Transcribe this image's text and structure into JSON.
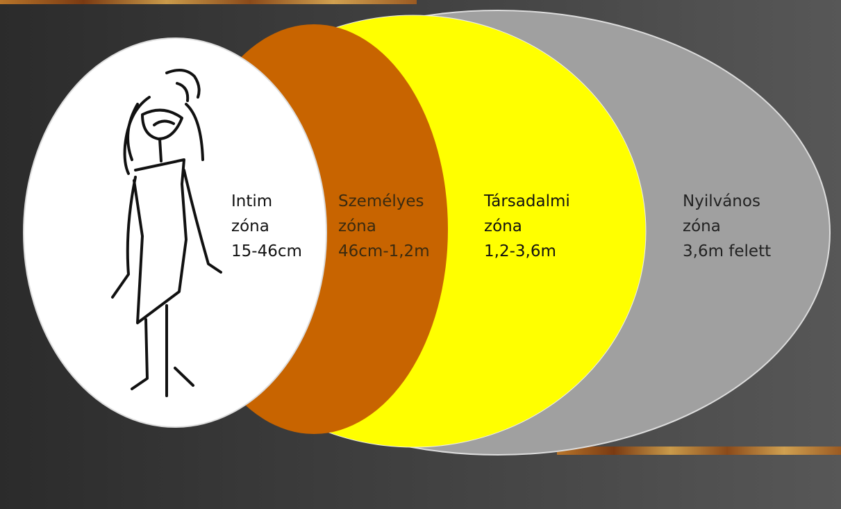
{
  "zones": [
    {
      "lines": [
        "Intim",
        "zóna",
        "15-46cm"
      ]
    },
    {
      "lines": [
        "Személyes",
        "zóna",
        "46cm-1,2m"
      ]
    },
    {
      "lines": [
        "Társadalmi",
        "zóna",
        "1,2-3,6m"
      ]
    },
    {
      "lines": [
        "Nyilvános",
        "zóna",
        "3,6m felett"
      ]
    }
  ]
}
